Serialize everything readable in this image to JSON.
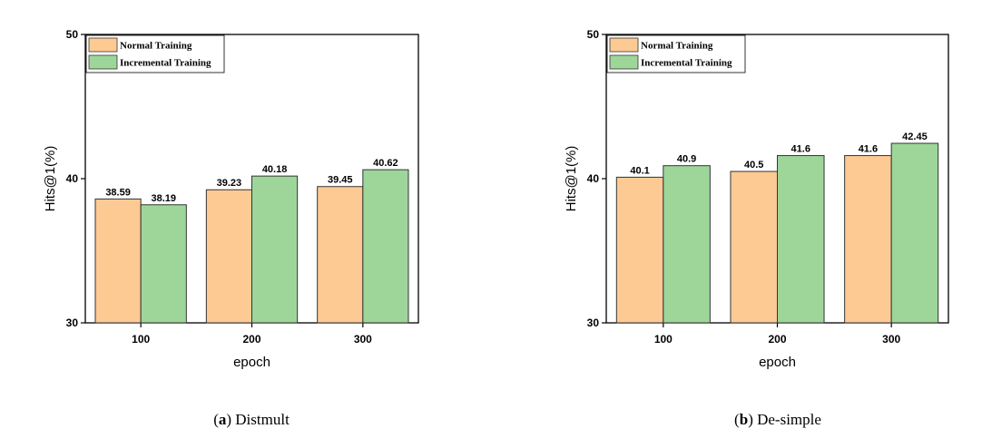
{
  "chart_data": [
    {
      "type": "bar",
      "caption_letter": "a",
      "caption_text": "Distmult",
      "categories": [
        "100",
        "200",
        "300"
      ],
      "series": [
        {
          "name": "Normal Training",
          "values": [
            38.59,
            39.23,
            39.45
          ],
          "labels": [
            "38.59",
            "39.23",
            "39.45"
          ],
          "color": "#FDCA93"
        },
        {
          "name": "Incremental Training",
          "values": [
            38.19,
            40.18,
            40.62
          ],
          "labels": [
            "38.19",
            "40.18",
            "40.62"
          ],
          "color": "#9ED69A"
        }
      ],
      "xlabel": "epoch",
      "ylabel": "Hits@1(%)",
      "ylim": [
        30,
        50
      ],
      "yticks": [
        "30",
        "40",
        "50"
      ],
      "legend": "top-left",
      "grid": false
    },
    {
      "type": "bar",
      "caption_letter": "b",
      "caption_text": "De-simple",
      "categories": [
        "100",
        "200",
        "300"
      ],
      "series": [
        {
          "name": "Normal Training",
          "values": [
            40.1,
            40.5,
            41.6
          ],
          "labels": [
            "40.1",
            "40.5",
            "41.6"
          ],
          "color": "#FDCA93"
        },
        {
          "name": "Incremental Training",
          "values": [
            40.9,
            41.6,
            42.45
          ],
          "labels": [
            "40.9",
            "41.6",
            "42.45"
          ],
          "color": "#9ED69A"
        }
      ],
      "xlabel": "epoch",
      "ylabel": "Hits@1(%)",
      "ylim": [
        30,
        50
      ],
      "yticks": [
        "30",
        "40",
        "50"
      ],
      "legend": "top-left",
      "grid": false
    }
  ]
}
